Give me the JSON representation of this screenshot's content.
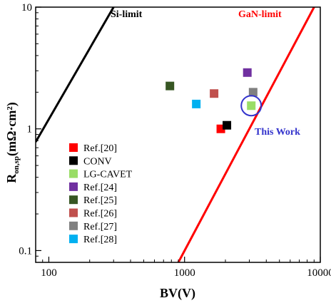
{
  "chart_data": {
    "type": "scatter",
    "xscale": "log",
    "yscale": "log",
    "xlim": [
      80,
      10000
    ],
    "ylim": [
      0.08,
      10
    ],
    "x_ticks": [
      "100",
      "1000",
      "10000"
    ],
    "y_ticks": [
      "0.1",
      "1",
      "10"
    ],
    "xlabel": "BV(V)",
    "ylabel_main": "R",
    "ylabel_sub": "on,sp",
    "ylabel_unit": "(mΩ·cm²)",
    "limit_lines": [
      {
        "name": "Si-limit",
        "color": "#000000",
        "x": [
          80,
          300
        ],
        "y": [
          0.78,
          10
        ]
      },
      {
        "name": "GaN-limit",
        "color": "#ff0000",
        "x": [
          900,
          9000
        ],
        "y": [
          0.08,
          10
        ]
      }
    ],
    "series": [
      {
        "name": "Ref.[20]",
        "color": "#ff0000",
        "points": [
          [
            1850,
            1.0
          ]
        ]
      },
      {
        "name": "CONV",
        "color": "#000000",
        "points": [
          [
            2050,
            1.07
          ]
        ]
      },
      {
        "name": "LG-CAVET",
        "color": "#99dd66",
        "points": [
          [
            3100,
            1.55
          ]
        ]
      },
      {
        "name": "Ref.[24]",
        "color": "#7030a0",
        "points": [
          [
            2900,
            2.9
          ]
        ]
      },
      {
        "name": "Ref.[25]",
        "color": "#375623",
        "points": [
          [
            780,
            2.25
          ]
        ]
      },
      {
        "name": "Ref.[26]",
        "color": "#c0504d",
        "points": [
          [
            1650,
            1.95
          ]
        ]
      },
      {
        "name": "Ref.[27]",
        "color": "#808080",
        "points": [
          [
            3200,
            2.0
          ]
        ]
      },
      {
        "name": "Ref.[28]",
        "color": "#00b0f0",
        "points": [
          [
            1220,
            1.6
          ]
        ]
      }
    ],
    "highlight": {
      "x": 3100,
      "y": 1.55,
      "label": "This Work",
      "color": "#3333cc"
    }
  }
}
